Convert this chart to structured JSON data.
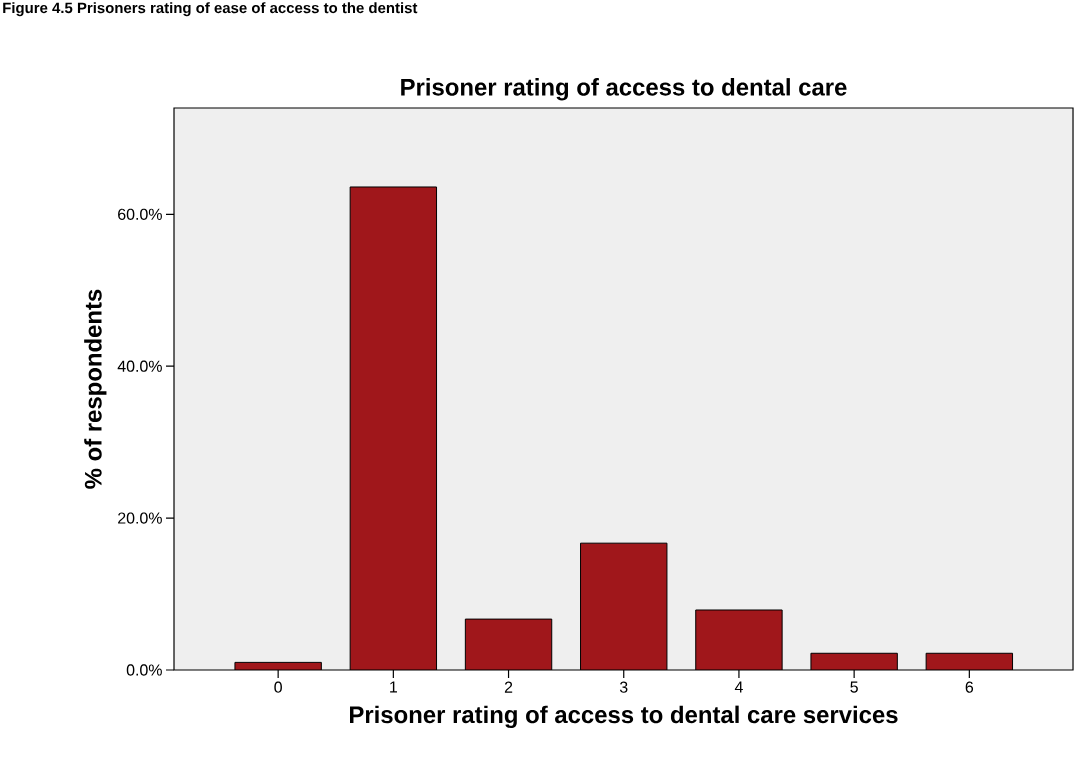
{
  "chart_data": {
    "type": "bar",
    "title": "Prisoner rating of access to dental care",
    "xlabel": "Prisoner rating of access to dental care services",
    "ylabel": "% of respondents",
    "annotations": [
      "Figure 4.5 Prisoners rating of ease of access to the dentist"
    ],
    "categories": [
      "0",
      "1",
      "2",
      "3",
      "4",
      "5",
      "6"
    ],
    "values": [
      1.0,
      63.6,
      6.7,
      16.7,
      7.9,
      2.2,
      2.2
    ],
    "color": "#a0171b",
    "ylim": [
      0,
      74
    ],
    "yticks": [
      {
        "value": 0,
        "label": "0.0%"
      },
      {
        "value": 20,
        "label": "20.0%"
      },
      {
        "value": 40,
        "label": "40.0%"
      },
      {
        "value": 60,
        "label": "60.0%"
      }
    ]
  }
}
